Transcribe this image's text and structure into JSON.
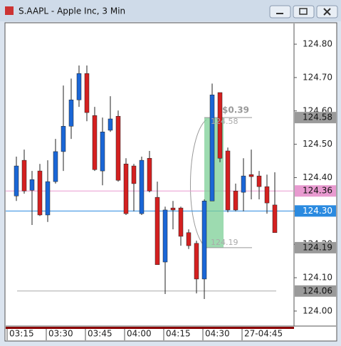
{
  "chart_data": {
    "type": "candlestick",
    "title": "S.AAPL - Apple Inc, 3 Min",
    "up_color": "#1a66d6",
    "down_color": "#d42020",
    "open": [
      124.345,
      124.452,
      124.362,
      124.42,
      124.288,
      124.388,
      124.478,
      124.554,
      124.633,
      124.712,
      124.586,
      124.42,
      124.542,
      124.584,
      124.441,
      124.435,
      124.292,
      124.458,
      124.341,
      124.147,
      124.309,
      124.309,
      124.235,
      124.203,
      124.096,
      124.33,
      124.655,
      124.48,
      124.36,
      124.356,
      124.409,
      124.405,
      124.373,
      124.318
    ],
    "high": [
      124.463,
      124.484,
      124.42,
      124.441,
      124.452,
      124.516,
      124.676,
      124.697,
      124.736,
      124.736,
      124.612,
      124.58,
      124.644,
      124.601,
      124.458,
      124.441,
      124.463,
      124.48,
      124.388,
      124.313,
      124.33,
      124.313,
      124.245,
      124.211,
      124.335,
      124.682,
      124.655,
      124.49,
      124.382,
      124.458,
      124.484,
      124.42,
      124.409,
      124.416
    ],
    "low": [
      124.33,
      124.352,
      124.258,
      124.285,
      124.267,
      124.382,
      124.42,
      124.516,
      124.612,
      124.569,
      124.42,
      124.377,
      124.537,
      124.388,
      124.288,
      124.299,
      124.288,
      124.356,
      124.139,
      124.051,
      124.245,
      124.196,
      124.186,
      124.053,
      124.036,
      124.33,
      124.446,
      124.296,
      124.299,
      124.299,
      124.335,
      124.335,
      124.292,
      124.235
    ],
    "close": [
      124.435,
      124.36,
      124.394,
      124.288,
      124.388,
      124.478,
      124.554,
      124.633,
      124.712,
      124.595,
      124.424,
      124.537,
      124.576,
      124.392,
      124.292,
      124.382,
      124.452,
      124.36,
      124.139,
      124.303,
      124.303,
      124.224,
      124.196,
      124.096,
      124.33,
      124.648,
      124.458,
      124.303,
      124.303,
      124.405,
      124.403,
      124.373,
      124.324,
      124.235
    ],
    "ylim": [
      123.955,
      124.862
    ],
    "yticks": [
      {
        "value": 124.0,
        "label": "124.00"
      },
      {
        "value": 124.1,
        "label": "124.10"
      },
      {
        "value": 124.2,
        "label": "124.20"
      },
      {
        "value": 124.3,
        "label": "124.30"
      },
      {
        "value": 124.4,
        "label": "124.40"
      },
      {
        "value": 124.5,
        "label": "124.50"
      },
      {
        "value": 124.6,
        "label": "124.60"
      },
      {
        "value": 124.7,
        "label": "124.70"
      },
      {
        "value": 124.8,
        "label": "124.80"
      }
    ],
    "xticks": [
      {
        "value": -1,
        "label": "03:15"
      },
      {
        "value": 4,
        "label": "03:30"
      },
      {
        "value": 9,
        "label": "03:45"
      },
      {
        "value": 14,
        "label": "04:00"
      },
      {
        "value": 19,
        "label": "04:15"
      },
      {
        "value": 24,
        "label": "04:30"
      },
      {
        "value": 29,
        "label": "27-04:45"
      }
    ],
    "price_lines": [
      {
        "value": 124.36,
        "label": "124.36",
        "color": "#e89ad0"
      },
      {
        "value": 124.3,
        "label": "124.30",
        "color": "#2a8ae0"
      },
      {
        "value": 124.06,
        "label": "124.06",
        "color": "#a8a8a8"
      }
    ],
    "measure": {
      "label": "$0.39",
      "top": 124.58,
      "top_label": "124.58",
      "bottom": 124.19,
      "bottom_label": "124.19",
      "color": "#7ccf95"
    }
  }
}
